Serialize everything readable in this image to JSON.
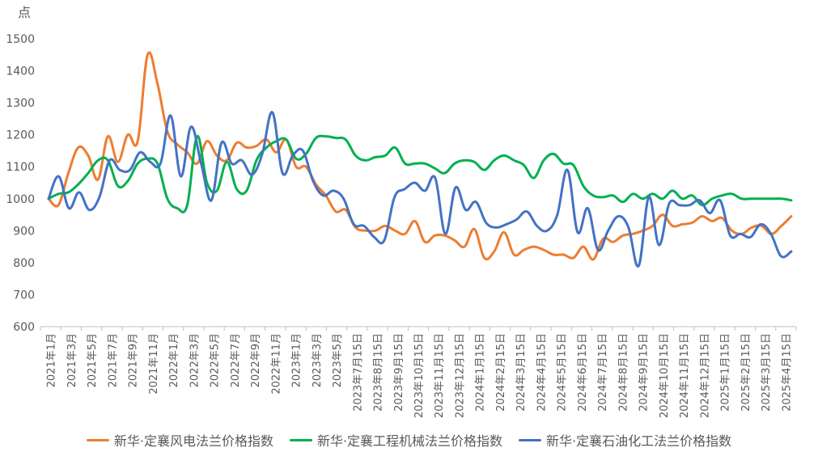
{
  "chart_data": {
    "type": "line",
    "y_unit_label": "点",
    "ylim": [
      600,
      1500
    ],
    "yticks": [
      600,
      700,
      800,
      900,
      1000,
      1100,
      1200,
      1300,
      1400,
      1500
    ],
    "grid": false,
    "legend_position": "bottom",
    "x_labels": [
      "2021年1月",
      "2021年3月",
      "2021年5月",
      "2021年7月",
      "2021年9月",
      "2021年11月",
      "2022年1月",
      "2022年3月",
      "2022年5月",
      "2022年7月",
      "2022年9月",
      "2022年11月",
      "2023年1月",
      "2023年3月",
      "2023年5月",
      "2023年7月15日",
      "2023年8月15日",
      "2023年9月15日",
      "2023年10月15日",
      "2023年11月15日",
      "2023年12月15日",
      "2024年1月15日",
      "2024年2月15日",
      "2024年3月15日",
      "2024年4月15日",
      "2024年5月15日",
      "2024年6月15日",
      "2024年7月15日",
      "2024年8月15日",
      "2024年9月15日",
      "2024年10月15日",
      "2024年11月15日",
      "2024年12月15日",
      "2025年1月15日",
      "2025年2月15日",
      "2025年3月15日",
      "2025年4月15日"
    ],
    "series": [
      {
        "name": "新华·定襄风电法兰价格指数",
        "color": "#ED7D31",
        "values": [
          1000,
          980,
          1080,
          1160,
          1135,
          1060,
          1195,
          1115,
          1200,
          1180,
          1450,
          1360,
          1210,
          1170,
          1145,
          1110,
          1180,
          1135,
          1120,
          1175,
          1160,
          1165,
          1185,
          1145,
          1185,
          1100,
          1100,
          1045,
          1010,
          960,
          965,
          910,
          900,
          900,
          915,
          900,
          890,
          930,
          865,
          885,
          885,
          870,
          850,
          905,
          815,
          835,
          895,
          825,
          840,
          850,
          840,
          825,
          825,
          815,
          850,
          810,
          875,
          865,
          885,
          890,
          900,
          915,
          950,
          915,
          920,
          925,
          945,
          930,
          940,
          900,
          890,
          910,
          915,
          890,
          915,
          945
        ]
      },
      {
        "name": "新华·定襄工程机械法兰价格指数",
        "color": "#00B050",
        "values": [
          1000,
          1015,
          1020,
          1045,
          1080,
          1120,
          1120,
          1040,
          1055,
          1110,
          1125,
          1110,
          1000,
          970,
          980,
          1195,
          1050,
          1025,
          1115,
          1030,
          1025,
          1120,
          1160,
          1180,
          1185,
          1125,
          1140,
          1190,
          1195,
          1190,
          1185,
          1135,
          1120,
          1130,
          1135,
          1160,
          1110,
          1110,
          1110,
          1095,
          1080,
          1110,
          1120,
          1115,
          1090,
          1120,
          1135,
          1120,
          1105,
          1065,
          1120,
          1140,
          1110,
          1105,
          1040,
          1010,
          1005,
          1010,
          990,
          1015,
          1000,
          1015,
          1000,
          1025,
          1000,
          1010,
          980,
          1000,
          1010,
          1015,
          1000,
          1000,
          1000,
          1000,
          1000,
          995
        ]
      },
      {
        "name": "新华·定襄石油化工法兰价格指数",
        "color": "#4472C4",
        "values": [
          1000,
          1070,
          970,
          1020,
          965,
          1005,
          1120,
          1090,
          1090,
          1145,
          1115,
          1110,
          1260,
          1070,
          1225,
          1110,
          995,
          1175,
          1110,
          1120,
          1075,
          1140,
          1270,
          1080,
          1135,
          1150,
          1055,
          1010,
          1025,
          1000,
          920,
          915,
          880,
          870,
          1005,
          1030,
          1050,
          1025,
          1065,
          890,
          1035,
          965,
          990,
          925,
          910,
          920,
          935,
          960,
          915,
          900,
          950,
          1090,
          895,
          970,
          840,
          900,
          945,
          910,
          790,
          1005,
          855,
          985,
          980,
          980,
          995,
          955,
          995,
          885,
          890,
          880,
          920,
          890,
          820,
          835
        ]
      }
    ]
  }
}
